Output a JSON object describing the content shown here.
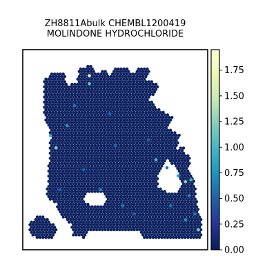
{
  "chart_data": {
    "type": "scatter",
    "subtype": "spatial-hexbin",
    "title_lines": [
      "ZH8811Abulk CHEMBL1200419",
      "MOLINDONE HYDROCHLORIDE"
    ],
    "xlabel": "",
    "ylabel": "",
    "x_ticks_shown": false,
    "y_ticks_shown": false,
    "grid": false,
    "colormap": "YlGnBu",
    "colorbar": {
      "range": [
        0,
        1.95
      ],
      "ticks": [
        0.0,
        0.25,
        0.5,
        0.75,
        1.0,
        1.25,
        1.5,
        1.75
      ],
      "tick_labels": [
        "0.00",
        "0.25",
        "0.50",
        "0.75",
        "1.00",
        "1.25",
        "1.50",
        "1.75"
      ]
    },
    "background_value": 0.03,
    "highlighted_spots": [
      {
        "x": 0.36,
        "y": 0.83,
        "value": 1.1
      },
      {
        "x": 0.36,
        "y": 0.87,
        "value": 1.7
      },
      {
        "x": 0.15,
        "y": 0.57,
        "value": 0.9
      },
      {
        "x": 0.18,
        "y": 0.51,
        "value": 1.2
      },
      {
        "x": 0.24,
        "y": 0.62,
        "value": 0.8
      },
      {
        "x": 0.72,
        "y": 0.45,
        "value": 1.05
      },
      {
        "x": 0.84,
        "y": 0.37,
        "value": 0.9
      },
      {
        "x": 0.88,
        "y": 0.34,
        "value": 1.25
      },
      {
        "x": 0.91,
        "y": 0.35,
        "value": 1.0
      },
      {
        "x": 0.95,
        "y": 0.1,
        "value": 1.2
      },
      {
        "x": 0.88,
        "y": 0.15,
        "value": 0.8
      },
      {
        "x": 0.42,
        "y": 0.3,
        "value": 0.7
      },
      {
        "x": 0.28,
        "y": 0.72,
        "value": 0.6
      },
      {
        "x": 0.54,
        "y": 0.22,
        "value": 0.6
      },
      {
        "x": 0.8,
        "y": 0.22,
        "value": 0.6
      },
      {
        "x": 0.93,
        "y": 0.18,
        "value": 0.6
      },
      {
        "x": 0.68,
        "y": 0.55,
        "value": 0.5
      },
      {
        "x": 0.2,
        "y": 0.3,
        "value": 0.5
      },
      {
        "x": 0.47,
        "y": 0.68,
        "value": 0.5
      },
      {
        "x": 0.6,
        "y": 0.18,
        "value": 0.5
      },
      {
        "x": 0.9,
        "y": 0.27,
        "value": 0.7
      },
      {
        "x": 0.78,
        "y": 0.41,
        "value": 0.6
      },
      {
        "x": 0.33,
        "y": 0.4,
        "value": 0.5
      },
      {
        "x": 0.5,
        "y": 0.52,
        "value": 0.5
      }
    ],
    "colors": {
      "low": "#081d58",
      "mid": "#41b6c4",
      "high": "#ffffd9",
      "frame": "#000000"
    }
  }
}
